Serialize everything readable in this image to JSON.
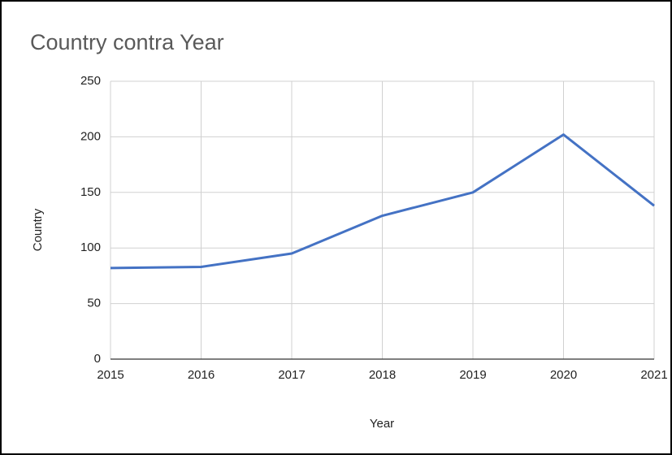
{
  "chart_data": {
    "type": "line",
    "title": "Country contra Year",
    "x_label": "Year",
    "y_label": "Country",
    "x": [
      2015,
      2016,
      2017,
      2018,
      2019,
      2020,
      2021
    ],
    "series": [
      {
        "name": "Country",
        "color": "#4472c4",
        "values": [
          82,
          83,
          95,
          129,
          150,
          202,
          138
        ]
      }
    ],
    "xlim": [
      2015,
      2021
    ],
    "xticks": [
      2015,
      2016,
      2017,
      2018,
      2019,
      2020,
      2021
    ],
    "ylim": [
      0,
      250
    ],
    "yticks": [
      0,
      50,
      100,
      150,
      200,
      250
    ],
    "grid": true
  }
}
